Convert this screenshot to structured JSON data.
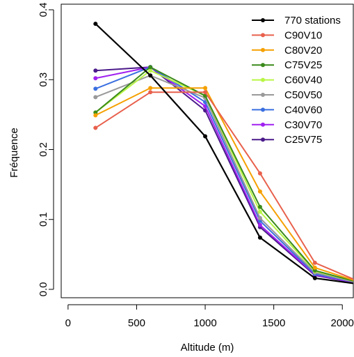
{
  "chart_data": {
    "type": "line",
    "title": "",
    "xlabel": "Altitude (m)",
    "ylabel": "Fréquence",
    "xlim": [
      -50,
      2080
    ],
    "ylim": [
      -0.012,
      0.408
    ],
    "x_ticks": [
      0,
      500,
      1000,
      1500,
      2000
    ],
    "x_tick_labels": [
      "0",
      "500",
      "1000",
      "1500",
      "2000"
    ],
    "y_ticks": [
      0.0,
      0.1,
      0.2,
      0.3,
      0.4
    ],
    "y_tick_labels": [
      "0.0",
      "0.1",
      "0.2",
      "0.3",
      "0.4"
    ],
    "grid": false,
    "legend_position": "top-right",
    "x": [
      200,
      600,
      1000,
      1400,
      1800,
      2100
    ],
    "series": [
      {
        "name": "770 stations",
        "color": "#000000",
        "values": [
          0.38,
          0.306,
          0.219,
          0.074,
          0.016,
          0.008
        ]
      },
      {
        "name": "C90V10",
        "color": "#e8604c",
        "values": [
          0.231,
          0.282,
          0.282,
          0.166,
          0.038,
          0.013
        ]
      },
      {
        "name": "C80V20",
        "color": "#f5a000",
        "values": [
          0.249,
          0.288,
          0.288,
          0.14,
          0.031,
          0.012
        ]
      },
      {
        "name": "C75V25",
        "color": "#3a8a1a",
        "values": [
          0.253,
          0.318,
          0.277,
          0.118,
          0.027,
          0.011
        ]
      },
      {
        "name": "C60V40",
        "color": "#b8f545",
        "values": [
          0.253,
          0.313,
          0.277,
          0.111,
          0.026,
          0.011
        ]
      },
      {
        "name": "C50V50",
        "color": "#999999",
        "values": [
          0.275,
          0.306,
          0.274,
          0.102,
          0.024,
          0.01
        ]
      },
      {
        "name": "C40V60",
        "color": "#3a6fe0",
        "values": [
          0.287,
          0.318,
          0.268,
          0.098,
          0.022,
          0.01
        ]
      },
      {
        "name": "C30V70",
        "color": "#a020f0",
        "values": [
          0.302,
          0.318,
          0.262,
          0.092,
          0.021,
          0.009
        ]
      },
      {
        "name": "C25V75",
        "color": "#4b1a8a",
        "values": [
          0.313,
          0.318,
          0.256,
          0.089,
          0.02,
          0.009
        ]
      }
    ]
  }
}
